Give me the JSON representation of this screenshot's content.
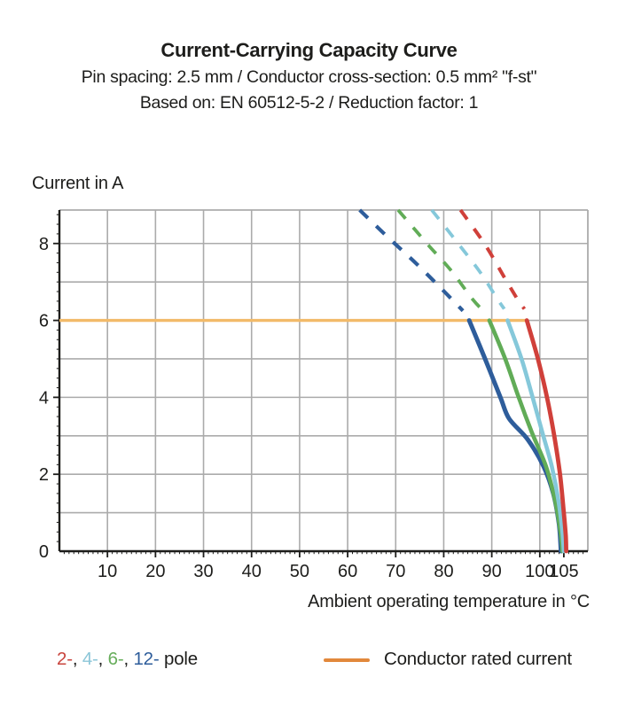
{
  "header": {
    "title": "Current-Carrying Capacity Curve",
    "subtitle1": "Pin spacing: 2.5 mm / Conductor cross-section: 0.5 mm² \"f-st\"",
    "subtitle2": "Based on: EN 60512-5-2 / Reduction factor: 1"
  },
  "chart_data": {
    "type": "line",
    "title": "Current-Carrying Capacity Curve",
    "xlabel": "Ambient operating temperature in °C",
    "ylabel": "Current in A",
    "xlim": [
      0,
      110
    ],
    "ylim": [
      0,
      8.87
    ],
    "grid": "on",
    "x_grid_step": 10,
    "y_grid_step": 1,
    "x_ticks": [
      10,
      20,
      30,
      40,
      50,
      60,
      70,
      80,
      90,
      100,
      105
    ],
    "y_ticks": [
      0,
      2,
      4,
      6,
      8
    ],
    "x_minor_tick_step": 1,
    "y_minor_tick_step": 0.25,
    "rated_current": {
      "label": "Conductor rated current",
      "value_A": 6,
      "x_start": 0,
      "x_end": 97.3,
      "color": "#F2BA69"
    },
    "series": [
      {
        "name": "12-pole",
        "color": "#2E5D9B",
        "width": 5,
        "dashed_points": [
          [
            62.5,
            8.87
          ],
          [
            68.5,
            8.15
          ],
          [
            74.5,
            7.45
          ],
          [
            80.5,
            6.7
          ],
          [
            84.0,
            6.25
          ]
        ],
        "solid_points": [
          [
            85.3,
            6.0
          ],
          [
            88.6,
            5.0
          ],
          [
            91.8,
            4.0
          ],
          [
            93.6,
            3.45
          ],
          [
            97.5,
            2.9
          ],
          [
            100.8,
            2.2
          ],
          [
            102.8,
            1.5
          ],
          [
            104.0,
            0.7
          ],
          [
            104.4,
            0.0
          ]
        ]
      },
      {
        "name": "6-pole",
        "color": "#61AC57",
        "width": 4.6,
        "dashed_points": [
          [
            70.5,
            8.87
          ],
          [
            76.5,
            8.0
          ],
          [
            81.5,
            7.3
          ],
          [
            86.0,
            6.55
          ],
          [
            88.3,
            6.25
          ]
        ],
        "solid_points": [
          [
            89.5,
            6.0
          ],
          [
            92.8,
            5.0
          ],
          [
            95.6,
            4.0
          ],
          [
            98.3,
            3.1
          ],
          [
            101.3,
            2.2
          ],
          [
            103.2,
            1.3
          ],
          [
            104.3,
            0.5
          ],
          [
            104.7,
            0.0
          ]
        ]
      },
      {
        "name": "4-pole",
        "color": "#85C8DA",
        "width": 4.6,
        "dashed_points": [
          [
            77.5,
            8.87
          ],
          [
            83.0,
            8.0
          ],
          [
            87.6,
            7.25
          ],
          [
            91.2,
            6.55
          ],
          [
            92.6,
            6.3
          ]
        ],
        "solid_points": [
          [
            93.3,
            6.0
          ],
          [
            96.2,
            5.0
          ],
          [
            98.5,
            4.0
          ],
          [
            100.5,
            3.1
          ],
          [
            102.5,
            2.2
          ],
          [
            103.9,
            1.3
          ],
          [
            104.7,
            0.5
          ],
          [
            105.0,
            0.0
          ]
        ]
      },
      {
        "name": "2-pole",
        "color": "#D0403A",
        "width": 4.8,
        "dashed_points": [
          [
            83.5,
            8.87
          ],
          [
            88.7,
            7.95
          ],
          [
            92.7,
            7.1
          ],
          [
            95.6,
            6.5
          ],
          [
            96.8,
            6.3
          ]
        ],
        "solid_points": [
          [
            97.3,
            6.0
          ],
          [
            99.6,
            5.0
          ],
          [
            101.5,
            4.0
          ],
          [
            103.0,
            3.0
          ],
          [
            104.2,
            2.0
          ],
          [
            105.0,
            1.0
          ],
          [
            105.4,
            0.4
          ],
          [
            105.5,
            0.0
          ]
        ]
      }
    ]
  },
  "axis_titles": {
    "y": "Current in A",
    "x": "Ambient operating temperature in °C"
  },
  "legend": {
    "poles": [
      {
        "label": "2-",
        "color": "#C9443D"
      },
      {
        "label": "4-",
        "color": "#8CC6D8"
      },
      {
        "label": "6-",
        "color": "#67AD5B"
      },
      {
        "label": "12-",
        "color": "#2E5D9B"
      }
    ],
    "separator": ", ",
    "suffix": " pole",
    "rated_label": "Conductor rated current",
    "rated_color": "#E2883C"
  },
  "style": {
    "grid_color": "#ABABAB",
    "axis_color": "#1d1d1b",
    "text_color": "#1d1d1b"
  }
}
